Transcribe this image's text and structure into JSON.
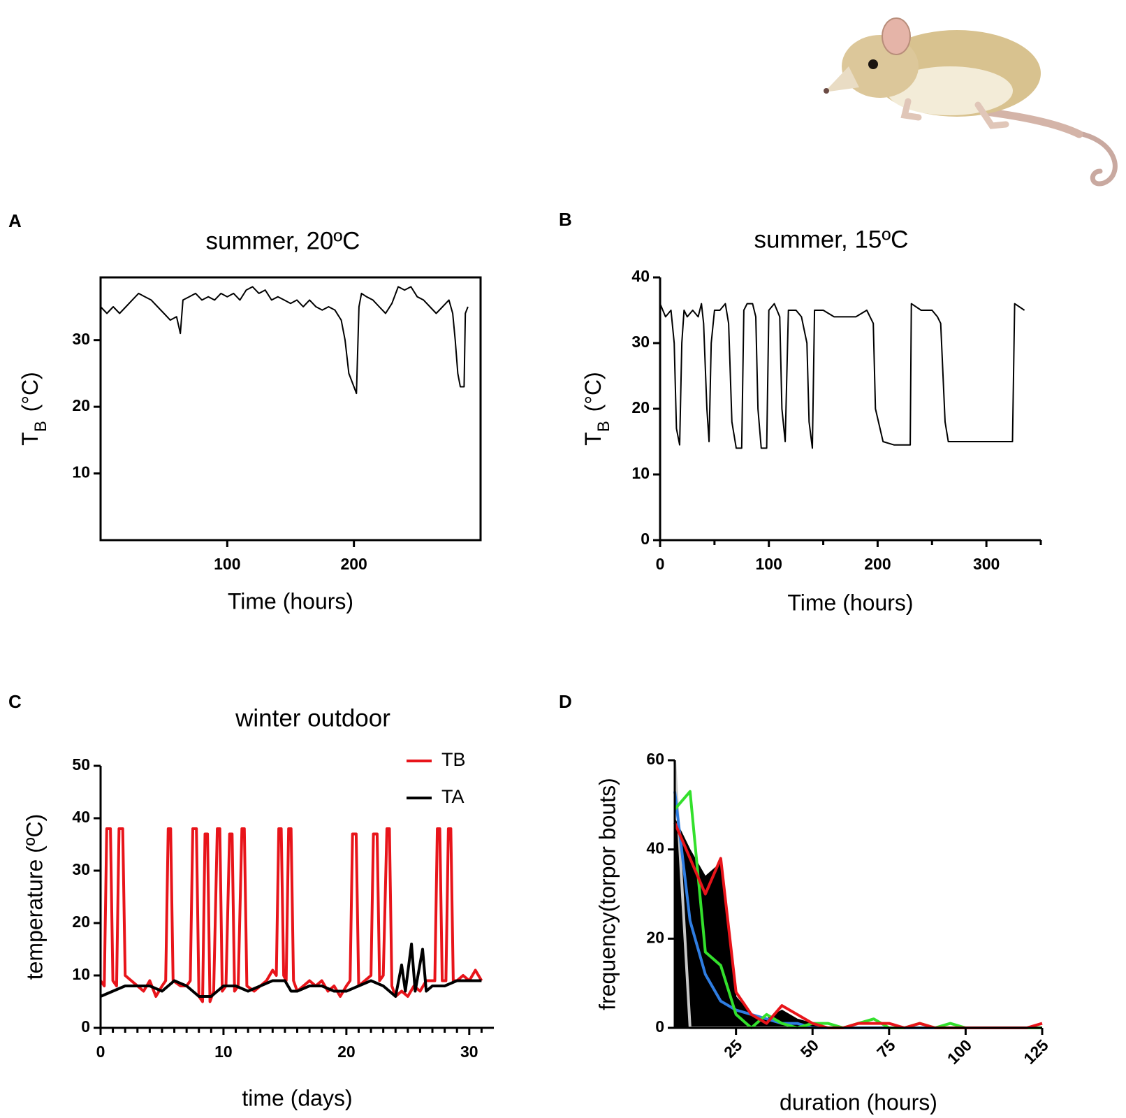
{
  "panel_labels": [
    "A",
    "B",
    "C",
    "D"
  ],
  "chart_data": [
    {
      "type": "line",
      "title": "summer, 20ºC",
      "xlabel": "Time (hours)",
      "ylabel": {
        "text": "T",
        "sub": "B",
        "rest": " (°C)"
      },
      "frame": true,
      "xlim": [
        0,
        300
      ],
      "xticks": [
        100,
        200
      ],
      "ylim": [
        0,
        39.4
      ],
      "yticks": [
        10,
        20,
        30
      ],
      "series": [
        {
          "color": "#000000",
          "x": [
            0,
            5,
            10,
            15,
            20,
            25,
            30,
            35,
            40,
            45,
            50,
            55,
            60,
            63,
            65,
            70,
            75,
            80,
            85,
            90,
            95,
            100,
            105,
            110,
            115,
            120,
            125,
            130,
            135,
            140,
            145,
            150,
            155,
            160,
            165,
            170,
            175,
            180,
            185,
            190,
            193,
            196,
            200,
            202,
            204,
            206,
            210,
            215,
            220,
            225,
            230,
            235,
            240,
            245,
            250,
            255,
            260,
            265,
            270,
            275,
            278,
            280,
            282,
            284,
            287,
            288,
            290
          ],
          "values": [
            35,
            34,
            35,
            34,
            35,
            36,
            37,
            36.5,
            36,
            35,
            34,
            33,
            33.5,
            31,
            36,
            36.5,
            37,
            36,
            36.5,
            36,
            37,
            36.5,
            37,
            36,
            37.5,
            38,
            37,
            37.5,
            36,
            36.5,
            36,
            35.5,
            36,
            35,
            36,
            35,
            34.5,
            35,
            34.5,
            33,
            30,
            25,
            23,
            22,
            35,
            37,
            36.5,
            36,
            35,
            34,
            35.5,
            38,
            37.5,
            38,
            36.5,
            36,
            35,
            34,
            35,
            36,
            34,
            30,
            25,
            23,
            23,
            34,
            35
          ]
        }
      ]
    },
    {
      "type": "line",
      "title": "summer, 15ºC",
      "xlabel": "Time (hours)",
      "ylabel": {
        "text": "T",
        "sub": "B",
        "rest": " (°C)"
      },
      "frame": false,
      "xlim": [
        0,
        350
      ],
      "xticks": [
        0,
        100,
        200,
        300
      ],
      "xminor_ticks": [
        50,
        150,
        250,
        350
      ],
      "ylim": [
        0,
        40
      ],
      "yticks": [
        0,
        10,
        20,
        30,
        40
      ],
      "series": [
        {
          "color": "#000000",
          "x": [
            0,
            5,
            10,
            13,
            15,
            18,
            20,
            22,
            25,
            30,
            35,
            38,
            40,
            43,
            45,
            47,
            50,
            55,
            60,
            63,
            66,
            70,
            75,
            77,
            80,
            85,
            88,
            90,
            93,
            98,
            100,
            105,
            110,
            112,
            115,
            118,
            120,
            125,
            130,
            135,
            137,
            140,
            142,
            150,
            160,
            170,
            180,
            190,
            196,
            198,
            205,
            215,
            225,
            230,
            231,
            240,
            250,
            255,
            258,
            262,
            265,
            280,
            300,
            320,
            324,
            326,
            335
          ],
          "values": [
            36,
            34,
            35,
            30,
            17,
            14.5,
            30,
            35,
            34,
            35,
            34,
            36,
            33,
            20,
            15,
            30,
            35,
            35,
            36,
            33,
            18,
            14,
            14,
            35,
            36,
            36,
            34,
            20,
            14,
            14,
            35,
            36,
            34,
            20,
            15,
            35,
            35,
            35,
            34,
            30,
            18,
            14,
            35,
            35,
            34,
            34,
            34,
            35,
            33,
            20,
            15,
            14.5,
            14.5,
            14.5,
            36,
            35,
            35,
            34,
            33,
            18,
            15,
            15,
            15,
            15,
            15,
            36,
            35
          ]
        }
      ]
    },
    {
      "type": "line",
      "title": "winter outdoor",
      "xlabel": "time (days)",
      "ylabel": "temperature (ºC)",
      "frame": false,
      "legend": "upper right",
      "xlim": [
        0,
        32
      ],
      "xticks": [
        0,
        10,
        20,
        30
      ],
      "xminor_ticks": [
        1,
        2,
        3,
        4,
        5,
        6,
        7,
        8,
        9,
        11,
        12,
        13,
        14,
        15,
        16,
        17,
        18,
        19,
        21,
        22,
        23,
        24,
        25,
        26,
        27,
        28,
        29,
        31
      ],
      "ylim": [
        0,
        50
      ],
      "yticks": [
        0,
        10,
        20,
        30,
        40,
        50
      ],
      "series": [
        {
          "name": "TB",
          "color": "#e8141a",
          "x": [
            0,
            0.3,
            0.5,
            0.8,
            1,
            1.3,
            1.5,
            1.8,
            2,
            2.5,
            3,
            3.5,
            4,
            4.5,
            5,
            5.3,
            5.5,
            5.7,
            5.9,
            6.5,
            7,
            7.3,
            7.5,
            7.8,
            8,
            8.3,
            8.5,
            8.7,
            8.9,
            9.2,
            9.5,
            9.7,
            9.9,
            10.2,
            10.5,
            10.7,
            10.9,
            11.2,
            11.5,
            11.7,
            11.9,
            12.5,
            13,
            13.5,
            14,
            14.3,
            14.5,
            14.7,
            14.9,
            15.1,
            15.3,
            15.5,
            15.7,
            16,
            16.5,
            17,
            17.5,
            18,
            18.5,
            19,
            19.5,
            20,
            20.3,
            20.5,
            20.8,
            21,
            21.5,
            22,
            22.2,
            22.5,
            22.7,
            23,
            23.3,
            23.5,
            23.7,
            24,
            24.5,
            25,
            25.5,
            26,
            26.5,
            27,
            27.2,
            27.4,
            27.6,
            27.8,
            28.1,
            28.3,
            28.5,
            28.7,
            29,
            29.5,
            30,
            30.5,
            31
          ],
          "values": [
            9,
            8,
            38,
            38,
            9,
            8,
            38,
            38,
            10,
            9,
            8,
            7,
            9,
            6,
            8,
            9,
            38,
            38,
            9,
            8,
            8,
            9,
            38,
            38,
            6,
            5,
            37,
            37,
            5,
            7,
            38,
            38,
            7,
            8,
            37,
            37,
            7,
            8,
            38,
            38,
            8,
            7,
            8,
            9,
            11,
            10,
            38,
            38,
            10,
            9,
            38,
            38,
            9,
            7,
            8,
            9,
            8,
            9,
            7,
            8,
            6,
            8,
            9,
            37,
            37,
            8,
            9,
            10,
            37,
            37,
            9,
            10,
            38,
            38,
            8,
            6,
            7,
            6,
            8,
            7,
            9,
            9,
            9,
            38,
            38,
            9,
            9,
            38,
            38,
            9,
            9,
            10,
            9,
            11,
            9
          ]
        },
        {
          "name": "TA",
          "color": "#000000",
          "x": [
            0,
            1,
            2,
            3,
            4,
            5,
            6,
            7,
            8,
            9,
            10,
            11,
            12,
            13,
            14,
            15,
            15.5,
            16,
            17,
            18,
            19,
            20,
            21,
            22,
            23,
            24,
            24.5,
            24.8,
            25.3,
            25.6,
            26.2,
            26.5,
            27,
            28,
            29,
            30,
            31
          ],
          "values": [
            6,
            7,
            8,
            8,
            8,
            7,
            9,
            8,
            6,
            6,
            8,
            8,
            7,
            8,
            9,
            9,
            7,
            7,
            8,
            8,
            7,
            7,
            8,
            9,
            8,
            6,
            12,
            7,
            16,
            7,
            15,
            7,
            8,
            8,
            9,
            9,
            9
          ]
        }
      ]
    },
    {
      "type": "line",
      "xlabel": "duration (hours)",
      "ylabel": "frequency(torpor bouts)",
      "frame": false,
      "xlim": [
        5,
        125
      ],
      "xticks": [
        25,
        50,
        75,
        100,
        125
      ],
      "ylim": [
        0,
        60
      ],
      "yticks": [
        0,
        20,
        40,
        60
      ],
      "xtick_rotation": -45,
      "x": [
        5,
        10,
        15,
        20,
        25,
        30,
        35,
        40,
        45,
        50,
        55,
        60,
        65,
        70,
        75,
        80,
        85,
        90,
        95,
        100,
        105,
        110,
        115,
        120,
        125
      ],
      "series": [
        {
          "color": "#000000",
          "fill": true,
          "values": [
            47,
            40,
            34,
            37,
            7,
            3,
            2,
            4,
            2,
            1,
            0,
            0,
            0,
            0,
            0,
            0,
            0,
            0,
            0,
            0,
            0,
            0,
            0,
            0,
            0
          ]
        },
        {
          "color": "#c8c8c8",
          "values": [
            60,
            0,
            0,
            0,
            0,
            0,
            0,
            0,
            0,
            0,
            0,
            0,
            0,
            0,
            0,
            0,
            0,
            0,
            0,
            0,
            0,
            0,
            0,
            0,
            0
          ]
        },
        {
          "color": "#2f7de1",
          "values": [
            53,
            24,
            12,
            6,
            4,
            3,
            2,
            1,
            1,
            0,
            0,
            0,
            0,
            0,
            0,
            0,
            0,
            0,
            0,
            0,
            0,
            0,
            0,
            0,
            0
          ]
        },
        {
          "color": "#33e02c",
          "values": [
            49,
            53,
            17,
            14,
            3,
            0,
            3,
            1,
            0,
            1,
            1,
            0,
            1,
            2,
            0,
            0,
            1,
            0,
            1,
            0,
            0,
            0,
            0,
            0,
            0
          ]
        },
        {
          "color": "#e8141a",
          "values": [
            46,
            38,
            30,
            38,
            8,
            3,
            1,
            5,
            3,
            1,
            0,
            0,
            1,
            1,
            1,
            0,
            1,
            0,
            0,
            0,
            0,
            0,
            0,
            0,
            1
          ]
        }
      ]
    }
  ]
}
